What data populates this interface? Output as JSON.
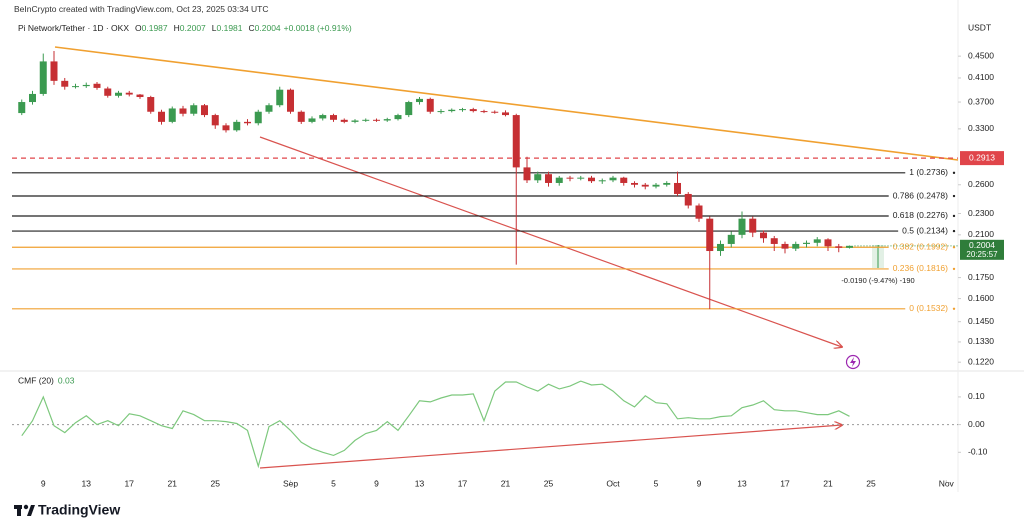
{
  "header": "BeInCrypto created with TradingView.com, Oct 23, 2025 03:34 UTC",
  "branding": "TradingView",
  "chart_data": [
    {
      "type": "candlestick",
      "title": "Pi Network/Tether · 1D · OKX",
      "legend_keys": [
        "O",
        "H",
        "L",
        "C"
      ],
      "change_label": "+0.0018 (+0.91%)",
      "currency": "USDT",
      "open": [
        0.353,
        0.37,
        0.383,
        0.44,
        0.405,
        0.395,
        0.396,
        0.4,
        0.392,
        0.38,
        0.385,
        0.382,
        0.378,
        0.355,
        0.34,
        0.36,
        0.352,
        0.365,
        0.35,
        0.335,
        0.328,
        0.34,
        0.338,
        0.355,
        0.365,
        0.39,
        0.355,
        0.34,
        0.345,
        0.35,
        0.343,
        0.34,
        0.342,
        0.343,
        0.342,
        0.344,
        0.35,
        0.37,
        0.375,
        0.355,
        0.356,
        0.358,
        0.359,
        0.356,
        0.355,
        0.354,
        0.35,
        0.28,
        0.265,
        0.272,
        0.262,
        0.268,
        0.267,
        0.268,
        0.264,
        0.265,
        0.268,
        0.262,
        0.26,
        0.258,
        0.26,
        0.262,
        0.25,
        0.238,
        0.225,
        0.196,
        0.202,
        0.21,
        0.225,
        0.212,
        0.207,
        0.202,
        0.198,
        0.202,
        0.203,
        0.206,
        0.2,
        0.1987
      ],
      "high": [
        0.374,
        0.388,
        0.455,
        0.46,
        0.41,
        0.4,
        0.402,
        0.403,
        0.395,
        0.388,
        0.388,
        0.383,
        0.38,
        0.358,
        0.363,
        0.364,
        0.368,
        0.367,
        0.352,
        0.338,
        0.343,
        0.344,
        0.358,
        0.368,
        0.395,
        0.392,
        0.357,
        0.348,
        0.352,
        0.352,
        0.345,
        0.344,
        0.345,
        0.345,
        0.346,
        0.352,
        0.372,
        0.378,
        0.377,
        0.359,
        0.36,
        0.361,
        0.361,
        0.358,
        0.357,
        0.357,
        0.352,
        0.293,
        0.275,
        0.275,
        0.27,
        0.27,
        0.27,
        0.27,
        0.267,
        0.27,
        0.269,
        0.264,
        0.262,
        0.262,
        0.264,
        0.275,
        0.252,
        0.24,
        0.227,
        0.205,
        0.213,
        0.232,
        0.227,
        0.214,
        0.209,
        0.204,
        0.204,
        0.205,
        0.208,
        0.207,
        0.202,
        0.2007
      ],
      "low": [
        0.35,
        0.366,
        0.38,
        0.398,
        0.39,
        0.392,
        0.393,
        0.39,
        0.377,
        0.377,
        0.379,
        0.375,
        0.352,
        0.336,
        0.338,
        0.348,
        0.349,
        0.347,
        0.33,
        0.325,
        0.326,
        0.335,
        0.335,
        0.352,
        0.362,
        0.352,
        0.337,
        0.338,
        0.342,
        0.34,
        0.338,
        0.338,
        0.34,
        0.34,
        0.34,
        0.342,
        0.347,
        0.366,
        0.352,
        0.352,
        0.354,
        0.355,
        0.354,
        0.353,
        0.352,
        0.348,
        0.185,
        0.262,
        0.262,
        0.258,
        0.259,
        0.264,
        0.265,
        0.262,
        0.261,
        0.263,
        0.259,
        0.257,
        0.255,
        0.256,
        0.258,
        0.248,
        0.235,
        0.222,
        0.153,
        0.192,
        0.199,
        0.207,
        0.208,
        0.203,
        0.196,
        0.194,
        0.196,
        0.199,
        0.2,
        0.196,
        0.195,
        0.1981
      ],
      "close": [
        0.37,
        0.383,
        0.44,
        0.405,
        0.395,
        0.396,
        0.398,
        0.393,
        0.38,
        0.385,
        0.382,
        0.378,
        0.355,
        0.34,
        0.36,
        0.352,
        0.365,
        0.35,
        0.335,
        0.328,
        0.34,
        0.338,
        0.355,
        0.365,
        0.39,
        0.355,
        0.34,
        0.345,
        0.35,
        0.343,
        0.34,
        0.342,
        0.343,
        0.342,
        0.344,
        0.35,
        0.37,
        0.375,
        0.355,
        0.356,
        0.358,
        0.359,
        0.356,
        0.355,
        0.354,
        0.35,
        0.28,
        0.265,
        0.272,
        0.262,
        0.268,
        0.267,
        0.268,
        0.264,
        0.265,
        0.268,
        0.262,
        0.26,
        0.258,
        0.26,
        0.262,
        0.25,
        0.238,
        0.225,
        0.196,
        0.202,
        0.21,
        0.225,
        0.212,
        0.207,
        0.202,
        0.198,
        0.202,
        0.203,
        0.206,
        0.2,
        0.1987,
        0.2004
      ],
      "up_color": "#3b9a50",
      "down_color": "#c62f33",
      "log_scale": true,
      "ylim": [
        0.118,
        0.525
      ],
      "yticks": [
        {
          "value": 0.45,
          "label": "0.4500"
        },
        {
          "value": 0.41,
          "label": "0.4100"
        },
        {
          "value": 0.37,
          "label": "0.3700"
        },
        {
          "value": 0.33,
          "label": "0.3300"
        },
        {
          "value": 0.26,
          "label": "0.2600"
        },
        {
          "value": 0.23,
          "label": "0.2300"
        },
        {
          "value": 0.21,
          "label": "0.2100"
        },
        {
          "value": 0.175,
          "label": "0.1750"
        },
        {
          "value": 0.16,
          "label": "0.1600"
        },
        {
          "value": 0.145,
          "label": "0.1450"
        },
        {
          "value": 0.133,
          "label": "0.1330"
        },
        {
          "value": 0.122,
          "label": "0.1220"
        }
      ],
      "xlim": [
        -1,
        87
      ],
      "xticks": [
        {
          "value": 2,
          "label": "9"
        },
        {
          "value": 6,
          "label": "13"
        },
        {
          "value": 10,
          "label": "17"
        },
        {
          "value": 14,
          "label": "21"
        },
        {
          "value": 18,
          "label": "25"
        },
        {
          "value": 25,
          "label": "Sep"
        },
        {
          "value": 29,
          "label": "5"
        },
        {
          "value": 33,
          "label": "9"
        },
        {
          "value": 37,
          "label": "13"
        },
        {
          "value": 41,
          "label": "17"
        },
        {
          "value": 45,
          "label": "21"
        },
        {
          "value": 49,
          "label": "25"
        },
        {
          "value": 55,
          "label": "Oct"
        },
        {
          "value": 59,
          "label": "5"
        },
        {
          "value": 63,
          "label": "9"
        },
        {
          "value": 67,
          "label": "13"
        },
        {
          "value": 71,
          "label": "17"
        },
        {
          "value": 75,
          "label": "21"
        },
        {
          "value": 79,
          "label": "25"
        },
        {
          "value": 86,
          "label": "Nov"
        }
      ],
      "levels": [
        {
          "value": 0.2736,
          "label": "1 (0.2736)",
          "color": "#222222"
        },
        {
          "value": 0.2478,
          "label": "0.786 (0.2478)",
          "color": "#222222"
        },
        {
          "value": 0.2276,
          "label": "0.618 (0.2276)",
          "color": "#222222"
        },
        {
          "value": 0.2134,
          "label": "0.5 (0.2134)",
          "color": "#222222"
        },
        {
          "value": 0.1992,
          "label": "0.382 (0.1992)",
          "color": "#f0a030"
        },
        {
          "value": 0.1816,
          "label": "0.236 (0.1816)",
          "color": "#f0a030"
        },
        {
          "value": 0.1532,
          "label": "0 (0.1532)",
          "color": "#f0a030"
        }
      ],
      "alert_level": 0.2913,
      "alert_color": "#e0454a",
      "countdown": "20:25:57",
      "measure_label": "-0.0190 (-9.47%) -190"
    },
    {
      "type": "line",
      "title": "CMF (20)",
      "values": [
        -0.04,
        0.014,
        0.1,
        -0.004,
        -0.029,
        0.007,
        0.032,
        0.0,
        0.014,
        -0.004,
        0.039,
        0.032,
        0.014,
        -0.004,
        -0.014,
        0.05,
        0.036,
        0.014,
        0.014,
        0.011,
        0.004,
        -0.021,
        -0.15,
        -0.007,
        0.014,
        -0.021,
        -0.064,
        -0.086,
        -0.1,
        -0.111,
        -0.093,
        -0.057,
        -0.032,
        -0.021,
        0.011,
        -0.021,
        0.032,
        0.086,
        0.082,
        0.096,
        0.107,
        0.107,
        0.111,
        0.014,
        0.121,
        0.154,
        0.154,
        0.136,
        0.121,
        0.146,
        0.129,
        0.139,
        0.157,
        0.143,
        0.146,
        0.121,
        0.086,
        0.064,
        0.104,
        0.079,
        0.075,
        0.021,
        0.025,
        0.021,
        0.021,
        0.029,
        0.032,
        0.061,
        0.071,
        0.086,
        0.054,
        0.05,
        0.05,
        0.043,
        0.036,
        0.036,
        0.05,
        0.03
      ],
      "color": "#7dc87d",
      "ylim": [
        -0.2,
        0.19
      ],
      "yticks": [
        {
          "value": 0.1,
          "label": "0.10"
        },
        {
          "value": 0,
          "label": "0.00"
        },
        {
          "value": -0.1,
          "label": "-0.10"
        }
      ]
    }
  ]
}
